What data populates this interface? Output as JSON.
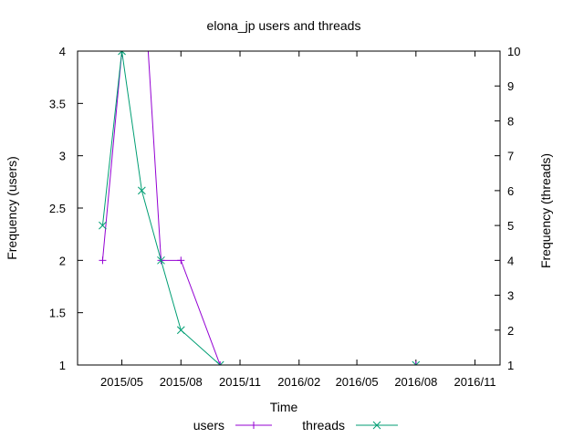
{
  "chart_data": {
    "type": "line",
    "title": "elona_jp users and threads",
    "xlabel": "Time",
    "ylabel": "Frequency (users)",
    "y2label": "Frequency (threads)",
    "x_axis": {
      "type": "date",
      "range": [
        "2015-02-21",
        "2016-12-10"
      ],
      "ticks": [
        {
          "date": "2015-05-01",
          "label": "2015/05"
        },
        {
          "date": "2015-08-01",
          "label": "2015/08"
        },
        {
          "date": "2015-11-01",
          "label": "2015/11"
        },
        {
          "date": "2016-02-01",
          "label": "2016/02"
        },
        {
          "date": "2016-05-01",
          "label": "2016/05"
        },
        {
          "date": "2016-08-01",
          "label": "2016/08"
        },
        {
          "date": "2016-11-01",
          "label": "2016/11"
        }
      ]
    },
    "ylim": [
      1,
      4
    ],
    "y_ticks": [
      "1",
      "1.5",
      "2",
      "2.5",
      "3",
      "3.5",
      "4"
    ],
    "y2lim": [
      1,
      10
    ],
    "y2_ticks": [
      "1",
      "2",
      "3",
      "4",
      "5",
      "6",
      "7",
      "8",
      "9",
      "10"
    ],
    "legend_position": "bottom",
    "grid": false,
    "series": [
      {
        "name": "users",
        "axis": "left",
        "color": "#9400d3",
        "marker": "plus",
        "points": [
          {
            "x": "2015-04-01",
            "y": 2
          },
          {
            "x": "2015-05-01",
            "y": 4
          },
          {
            "x": "2015-06-01",
            "y": 5
          },
          {
            "x": "2015-07-01",
            "y": 2
          },
          {
            "x": "2015-08-01",
            "y": 2
          },
          {
            "x": "2015-10-01",
            "y": 1
          },
          {
            "x": "2016-08-01",
            "y": 1
          }
        ],
        "segments": [
          [
            0,
            1,
            2,
            3,
            4,
            5
          ]
        ]
      },
      {
        "name": "threads",
        "axis": "right",
        "color": "#009e73",
        "marker": "cross",
        "points": [
          {
            "x": "2015-04-01",
            "y": 5
          },
          {
            "x": "2015-05-01",
            "y": 10
          },
          {
            "x": "2015-06-01",
            "y": 6
          },
          {
            "x": "2015-07-01",
            "y": 4
          },
          {
            "x": "2015-08-01",
            "y": 2
          },
          {
            "x": "2015-10-01",
            "y": 1
          },
          {
            "x": "2016-08-01",
            "y": 1
          }
        ],
        "segments": [
          [
            0,
            1,
            2,
            3,
            4,
            5
          ]
        ]
      }
    ]
  }
}
